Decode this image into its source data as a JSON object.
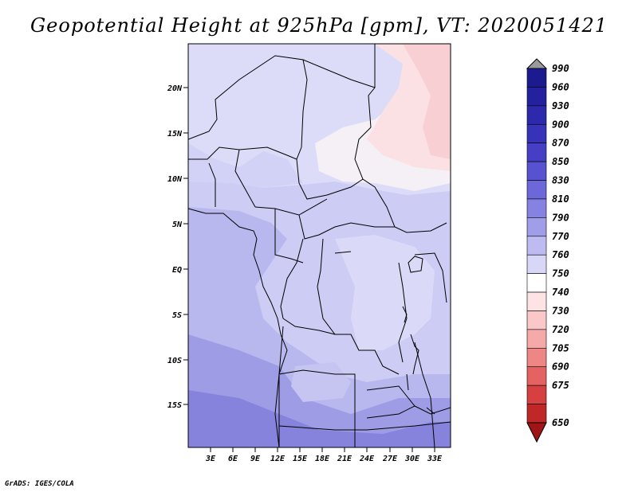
{
  "title": "Geopotential Height at 925hPa [gpm], VT: 2020051421",
  "footer": "GrADS: IGES/COLA",
  "map": {
    "lat_labels": [
      "20N",
      "15N",
      "10N",
      "5N",
      "EQ",
      "5S",
      "10S",
      "15S"
    ],
    "lon_labels": [
      "3E",
      "6E",
      "9E",
      "12E",
      "15E",
      "18E",
      "21E",
      "24E",
      "27E",
      "30E",
      "33E"
    ]
  },
  "colorbar": {
    "levels": [
      {
        "label": "990",
        "color": "#1c1a8f"
      },
      {
        "label": "960",
        "color": "#24219f"
      },
      {
        "label": "930",
        "color": "#2c29ad"
      },
      {
        "label": "900",
        "color": "#3732ba"
      },
      {
        "label": "870",
        "color": "#453fc6"
      },
      {
        "label": "850",
        "color": "#5752cf"
      },
      {
        "label": "830",
        "color": "#6d68d9"
      },
      {
        "label": "810",
        "color": "#8682e1"
      },
      {
        "label": "790",
        "color": "#a19ee9"
      },
      {
        "label": "770",
        "color": "#bdbbf1"
      },
      {
        "label": "760",
        "color": "#d8d7f8"
      },
      {
        "label": "750",
        "color": "#ffffff"
      },
      {
        "label": "740",
        "color": "#fde3e3"
      },
      {
        "label": "730",
        "color": "#fac8c8"
      },
      {
        "label": "720",
        "color": "#f5a9a9"
      },
      {
        "label": "705",
        "color": "#ee8686"
      },
      {
        "label": "690",
        "color": "#e46262"
      },
      {
        "label": "675",
        "color": "#d64040"
      },
      {
        "label": "650",
        "color": "#c02828"
      }
    ],
    "top_color": "#9a9a9a",
    "bottom_color": "#a01515"
  }
}
